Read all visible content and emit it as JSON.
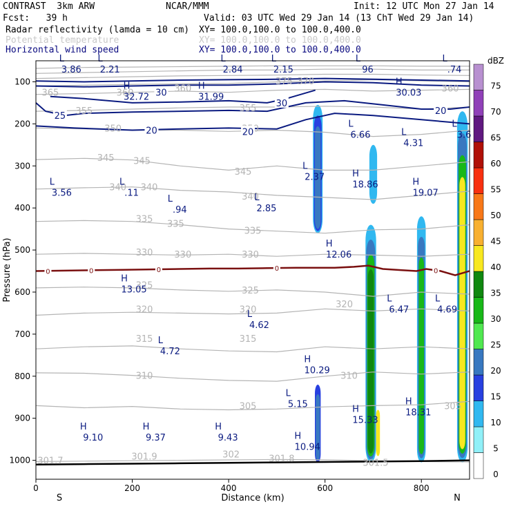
{
  "header": {
    "model": "CONTRAST  3km ARW",
    "org": "NCAR/MMM",
    "init": "Init: 12 UTC Mon 27 Jan 14",
    "forecast": "Fcst:   39 h",
    "valid": "Valid: 03 UTC Wed 29 Jan 14 (13 ChT Wed 29 Jan 14)",
    "fields": [
      {
        "name": "Radar reflectivity (lamda = 10 cm)",
        "xy": "XY= 100.0,100.0 to 100.0,400.0"
      },
      {
        "name": "Potential temperature",
        "xy": "XY= 100.0,100.0 to 100.0,400.0"
      },
      {
        "name": "Horizontal wind speed",
        "xy": "XY= 100.0,100.0 to 100.0,400.0"
      }
    ]
  },
  "colors": {
    "theta": "#b4b4b4",
    "wind": "#0a1a80",
    "freezing": "#7a1010",
    "frame": "#000000"
  },
  "chart_data": {
    "type": "heatmap",
    "title": "Radar reflectivity / Potential temperature / Horizontal wind speed cross-section",
    "xlabel": "Distance (km)",
    "ylabel": "Pressure (hPa)",
    "xlim": [
      0,
      900
    ],
    "ylim": [
      1045,
      50
    ],
    "x_ticks": [
      0,
      200,
      400,
      600,
      800
    ],
    "y_ticks": [
      100,
      200,
      300,
      400,
      500,
      600,
      700,
      800,
      900,
      1000
    ],
    "x_end_labels": {
      "left": "S",
      "right": "N"
    },
    "colorbar": {
      "unit": "dBZ",
      "levels": [
        0,
        5,
        10,
        15,
        20,
        25,
        30,
        35,
        40,
        45,
        50,
        55,
        60,
        65,
        70,
        75
      ],
      "colors": [
        "#ffffff",
        "#90f0f8",
        "#30b8f0",
        "#2840e0",
        "#3878c0",
        "#50e850",
        "#18b818",
        "#108810",
        "#f8e820",
        "#f8b030",
        "#f87818",
        "#f83010",
        "#b01008",
        "#601880",
        "#9040b8",
        "#b890d0"
      ]
    },
    "theta_labels": [
      {
        "x": 30,
        "p": 125,
        "text": "365"
      },
      {
        "x": 515,
        "p": 98,
        "text": "375"
      },
      {
        "x": 560,
        "p": 98,
        "text": "370"
      },
      {
        "x": 185,
        "p": 125,
        "text": "360"
      },
      {
        "x": 305,
        "p": 115,
        "text": "360"
      },
      {
        "x": 860,
        "p": 115,
        "text": "360"
      },
      {
        "x": 100,
        "p": 168,
        "text": "355"
      },
      {
        "x": 440,
        "p": 162,
        "text": "355"
      },
      {
        "x": 160,
        "p": 210,
        "text": "350"
      },
      {
        "x": 445,
        "p": 210,
        "text": "350"
      },
      {
        "x": 145,
        "p": 280,
        "text": "345"
      },
      {
        "x": 220,
        "p": 287,
        "text": "345"
      },
      {
        "x": 430,
        "p": 313,
        "text": "345"
      },
      {
        "x": 170,
        "p": 350,
        "text": "340"
      },
      {
        "x": 235,
        "p": 350,
        "text": "340"
      },
      {
        "x": 445,
        "p": 372,
        "text": "340"
      },
      {
        "x": 225,
        "p": 425,
        "text": "335"
      },
      {
        "x": 290,
        "p": 437,
        "text": "335"
      },
      {
        "x": 450,
        "p": 453,
        "text": "335"
      },
      {
        "x": 225,
        "p": 505,
        "text": "330"
      },
      {
        "x": 305,
        "p": 510,
        "text": "330"
      },
      {
        "x": 445,
        "p": 510,
        "text": "330"
      },
      {
        "x": 225,
        "p": 583,
        "text": "325"
      },
      {
        "x": 445,
        "p": 595,
        "text": "325"
      },
      {
        "x": 640,
        "p": 628,
        "text": "320"
      },
      {
        "x": 225,
        "p": 640,
        "text": "320"
      },
      {
        "x": 440,
        "p": 640,
        "text": "320"
      },
      {
        "x": 225,
        "p": 710,
        "text": "315"
      },
      {
        "x": 440,
        "p": 710,
        "text": "315"
      },
      {
        "x": 225,
        "p": 798,
        "text": "310"
      },
      {
        "x": 650,
        "p": 798,
        "text": "310"
      },
      {
        "x": 440,
        "p": 870,
        "text": "305"
      },
      {
        "x": 865,
        "p": 870,
        "text": "305"
      },
      {
        "x": 30,
        "p": 1000,
        "text": "301.7"
      },
      {
        "x": 225,
        "p": 990,
        "text": "301.9"
      },
      {
        "x": 405,
        "p": 985,
        "text": "302"
      },
      {
        "x": 510,
        "p": 995,
        "text": "301.8"
      },
      {
        "x": 705,
        "p": 1005,
        "text": "301.5"
      }
    ],
    "wind_contour_labels": [
      {
        "x": 260,
        "p": 125,
        "text": "30"
      },
      {
        "x": 510,
        "p": 150,
        "text": "30"
      },
      {
        "x": 50,
        "p": 180,
        "text": "25"
      },
      {
        "x": 240,
        "p": 215,
        "text": "20"
      },
      {
        "x": 440,
        "p": 218,
        "text": "20"
      },
      {
        "x": 840,
        "p": 168,
        "text": "20"
      }
    ],
    "wind_extrema": [
      {
        "x": 65,
        "p": 65,
        "type": "L",
        "value": "3.86"
      },
      {
        "x": 145,
        "p": 65,
        "type": "L",
        "value": "2.21"
      },
      {
        "x": 400,
        "p": 65,
        "type": "L",
        "value": "2.84"
      },
      {
        "x": 505,
        "p": 65,
        "type": "L",
        "value": "2.15"
      },
      {
        "x": 680,
        "p": 65,
        "type": "L",
        "value": "96"
      },
      {
        "x": 860,
        "p": 65,
        "type": "L",
        "value": ".74"
      },
      {
        "x": 200,
        "p": 130,
        "type": "H",
        "value": "32.72"
      },
      {
        "x": 355,
        "p": 130,
        "type": "H",
        "value": "31.99"
      },
      {
        "x": 765,
        "p": 120,
        "type": "H",
        "value": "30.03"
      },
      {
        "x": 665,
        "p": 220,
        "type": "L",
        "value": "6.66"
      },
      {
        "x": 775,
        "p": 240,
        "type": "L",
        "value": "4.31"
      },
      {
        "x": 880,
        "p": 220,
        "type": "L",
        "value": "3.6"
      },
      {
        "x": 570,
        "p": 320,
        "type": "L",
        "value": "2.37"
      },
      {
        "x": 675,
        "p": 338,
        "type": "H",
        "value": "18.86"
      },
      {
        "x": 45,
        "p": 358,
        "type": "L",
        "value": "3.56"
      },
      {
        "x": 190,
        "p": 358,
        "type": "L",
        "value": ".11"
      },
      {
        "x": 290,
        "p": 398,
        "type": "L",
        "value": ".94"
      },
      {
        "x": 470,
        "p": 395,
        "type": "L",
        "value": "2.85"
      },
      {
        "x": 800,
        "p": 358,
        "type": "H",
        "value": "19.07"
      },
      {
        "x": 620,
        "p": 505,
        "type": "H",
        "value": "12.06"
      },
      {
        "x": 195,
        "p": 588,
        "type": "H",
        "value": "13.05"
      },
      {
        "x": 745,
        "p": 635,
        "type": "L",
        "value": "6.47"
      },
      {
        "x": 845,
        "p": 635,
        "type": "L",
        "value": "4.69"
      },
      {
        "x": 455,
        "p": 672,
        "type": "L",
        "value": "4.62"
      },
      {
        "x": 270,
        "p": 735,
        "type": "L",
        "value": "4.72"
      },
      {
        "x": 575,
        "p": 780,
        "type": "H",
        "value": "10.29"
      },
      {
        "x": 535,
        "p": 860,
        "type": "L",
        "value": "5.15"
      },
      {
        "x": 675,
        "p": 898,
        "type": "H",
        "value": "15.33"
      },
      {
        "x": 785,
        "p": 880,
        "type": "H",
        "value": "18.31"
      },
      {
        "x": 110,
        "p": 940,
        "type": "H",
        "value": "9.10"
      },
      {
        "x": 240,
        "p": 940,
        "type": "H",
        "value": "9.37"
      },
      {
        "x": 390,
        "p": 940,
        "type": "H",
        "value": "9.43"
      },
      {
        "x": 555,
        "p": 962,
        "type": "H",
        "value": "10.94"
      }
    ],
    "freezing_level_label": "0",
    "freezing_level_label_x": [
      25,
      115,
      255,
      500,
      830
    ],
    "freezing_level": {
      "x": [
        0,
        60,
        120,
        180,
        240,
        300,
        360,
        420,
        480,
        540,
        580,
        620,
        660,
        690,
        720,
        760,
        790,
        810,
        840,
        870,
        900
      ],
      "p": [
        550,
        549,
        548,
        547,
        546,
        545,
        544,
        544,
        543,
        542,
        542,
        542,
        540,
        537,
        545,
        548,
        550,
        545,
        550,
        560,
        550
      ]
    },
    "surface": {
      "x": [
        0,
        100,
        200,
        300,
        400,
        500,
        600,
        700,
        800,
        900
      ],
      "p": [
        1010,
        1009,
        1008,
        1007,
        1006,
        1005,
        1004,
        1003,
        1002,
        1000
      ]
    },
    "theta_isolines": [
      {
        "p": [
          1003,
          1002,
          1001,
          1000,
          999,
          998,
          999,
          1001,
          1003,
          1004
        ]
      },
      {
        "p": [
          870,
          875,
          872,
          878,
          880,
          878,
          873,
          870,
          868,
          860
        ]
      },
      {
        "p": [
          792,
          793,
          798,
          805,
          810,
          812,
          800,
          790,
          795,
          790
        ]
      },
      {
        "p": [
          735,
          730,
          728,
          735,
          740,
          742,
          730,
          735,
          730,
          735
        ]
      },
      {
        "p": [
          655,
          650,
          648,
          650,
          652,
          650,
          640,
          645,
          640,
          645
        ]
      },
      {
        "p": [
          590,
          588,
          590,
          595,
          598,
          595,
          600,
          610,
          600,
          605
        ]
      },
      {
        "p": [
          510,
          508,
          510,
          512,
          510,
          515,
          510,
          512,
          515,
          510
        ]
      },
      {
        "p": [
          432,
          430,
          432,
          440,
          450,
          455,
          460,
          452,
          450,
          440
        ]
      },
      {
        "p": [
          355,
          352,
          350,
          358,
          362,
          370,
          375,
          380,
          370,
          360
        ]
      },
      {
        "p": [
          285,
          282,
          286,
          300,
          310,
          300,
          310,
          310,
          300,
          290
        ]
      },
      {
        "p": [
          210,
          212,
          215,
          215,
          218,
          215,
          220,
          230,
          225,
          215
        ]
      },
      {
        "p": [
          170,
          168,
          165,
          162,
          160,
          160,
          158,
          160,
          165,
          160
        ]
      },
      {
        "p": [
          130,
          128,
          125,
          122,
          125,
          120,
          118,
          122,
          120,
          118
        ]
      },
      {
        "p": [
          110,
          108,
          106,
          105,
          104,
          100,
          98,
          95,
          98,
          100
        ]
      },
      {
        "p": [
          92,
          90,
          88,
          86,
          85,
          84,
          82,
          82,
          84,
          85
        ]
      },
      {
        "p": [
          80,
          78,
          76,
          74,
          72,
          72,
          70,
          70,
          72,
          72
        ]
      },
      {
        "p": [
          68,
          66,
          65,
          64,
          63,
          62,
          62,
          62,
          63,
          63
        ]
      }
    ],
    "theta_x": [
      0,
      100,
      200,
      300,
      400,
      500,
      600,
      700,
      800,
      900
    ],
    "wind_isolines": [
      {
        "x": [
          0,
          80,
          200,
          300,
          400,
          500,
          560,
          620,
          700,
          800,
          900
        ],
        "p": [
          205,
          210,
          215,
          212,
          210,
          212,
          190,
          175,
          180,
          190,
          200
        ]
      },
      {
        "x": [
          0,
          20,
          60,
          100,
          200,
          300,
          400,
          480,
          560,
          640,
          720,
          800,
          860,
          900
        ],
        "p": [
          150,
          170,
          180,
          175,
          172,
          170,
          168,
          170,
          150,
          145,
          155,
          165,
          165,
          160
        ]
      },
      {
        "x": [
          30,
          100,
          200,
          300,
          400,
          480,
          520,
          580
        ],
        "p": [
          135,
          140,
          150,
          148,
          145,
          150,
          140,
          120
        ]
      },
      {
        "x": [
          0,
          100,
          200,
          300,
          400,
          500,
          600,
          700,
          800,
          900
        ],
        "p": [
          110,
          112,
          110,
          108,
          108,
          105,
          100,
          102,
          108,
          110
        ]
      },
      {
        "x": [
          0,
          100,
          200,
          300,
          400,
          500,
          600,
          700,
          800,
          900
        ],
        "p": [
          98,
          100,
          98,
          96,
          95,
          94,
          92,
          94,
          96,
          98
        ]
      }
    ],
    "reflectivity_cells": [
      {
        "x": 585,
        "w": 20,
        "ptop": 155,
        "pbot": 460,
        "levels": [
          10,
          15,
          20
        ]
      },
      {
        "x": 695,
        "w": 22,
        "ptop": 440,
        "pbot": 1005,
        "levels": [
          10,
          20,
          30,
          35
        ]
      },
      {
        "x": 710,
        "w": 8,
        "ptop": 880,
        "pbot": 990,
        "levels": [
          40
        ]
      },
      {
        "x": 700,
        "w": 16,
        "ptop": 250,
        "pbot": 390,
        "levels": [
          10
        ]
      },
      {
        "x": 800,
        "w": 18,
        "ptop": 420,
        "pbot": 1005,
        "levels": [
          10,
          20,
          30
        ]
      },
      {
        "x": 885,
        "w": 22,
        "ptop": 170,
        "pbot": 1005,
        "levels": [
          10,
          20,
          30,
          40
        ]
      },
      {
        "x": 585,
        "w": 12,
        "ptop": 820,
        "pbot": 1005,
        "levels": [
          15,
          20
        ]
      }
    ]
  }
}
